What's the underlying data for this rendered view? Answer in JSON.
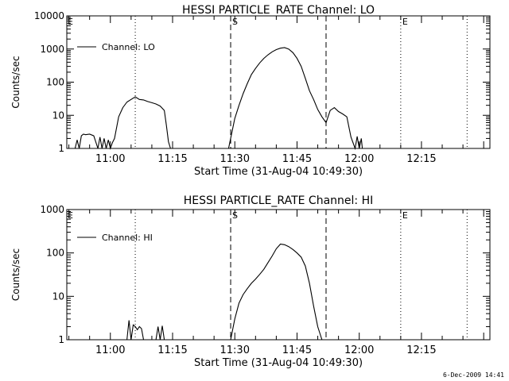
{
  "footer_date": "6-Dec-2009 14:41",
  "chart_data": [
    {
      "type": "line",
      "title": "HESSI PARTICLE_RATE Channel: LO",
      "xlabel": "Start Time (31-Aug-04 10:49:30)",
      "ylabel": "Counts/sec",
      "yscale": "log",
      "ylim": [
        1,
        10000
      ],
      "xlim": [
        "10:49:30",
        "12:31:30"
      ],
      "x_ticks": [
        "11:00",
        "11:15",
        "11:30",
        "11:45",
        "12:00",
        "12:15"
      ],
      "y_ticks": [
        "1",
        "10",
        "100",
        "1000",
        "10000"
      ],
      "legend": {
        "label": "Channel: LO",
        "placement": "top-left"
      },
      "markers": [
        {
          "time": "11:06",
          "style": "dotted",
          "label": ""
        },
        {
          "time": "11:29",
          "style": "dashed",
          "label": "S"
        },
        {
          "time": "11:52",
          "style": "dashed",
          "label": ""
        },
        {
          "time": "12:10",
          "style": "dotted",
          "label": "E"
        },
        {
          "time": "12:26",
          "style": "dotted",
          "label": ""
        }
      ],
      "edge_label": "E",
      "series": [
        {
          "x": [
            "10:51:30",
            "10:52:00",
            "10:52:30",
            "10:53:00",
            "10:53:30",
            "10:54:00",
            "10:55:00",
            "10:56:00",
            "10:57:00",
            "10:57:30",
            "10:58:00",
            "10:58:30",
            "10:59:00",
            "10:59:30",
            "11:00:00",
            "11:00:30",
            "11:01:00",
            "11:02:00",
            "11:03:00",
            "11:04:00",
            "11:05:00",
            "11:06:00",
            "11:07:00",
            "11:08:00",
            "11:09:00",
            "11:10:00",
            "11:11:00",
            "11:12:00",
            "11:13:00",
            "11:13:30",
            "11:14:00",
            "11:14:30"
          ],
          "y": [
            1,
            1.8,
            1,
            2.4,
            2.7,
            2.6,
            2.7,
            2.4,
            1,
            2.2,
            1,
            2.0,
            1,
            1.8,
            1,
            1.5,
            2,
            9,
            17,
            25,
            30,
            36,
            30,
            29,
            26,
            24,
            22,
            19,
            14,
            5,
            1.6,
            1
          ],
          "segment": 1
        },
        {
          "x": [
            "11:28:30",
            "11:29:00",
            "11:29:30",
            "11:30:00",
            "11:31:00",
            "11:32:00",
            "11:33:00",
            "11:34:00",
            "11:35:00",
            "11:36:00",
            "11:37:00",
            "11:38:00",
            "11:39:00",
            "11:40:00",
            "11:41:00",
            "11:42:00",
            "11:43:00",
            "11:44:00",
            "11:45:00",
            "11:46:00",
            "11:47:00",
            "11:48:00",
            "11:49:00",
            "11:50:00",
            "11:51:00",
            "11:52:00",
            "11:53:00",
            "11:54:00",
            "11:55:00",
            "11:56:00",
            "11:57:00",
            "11:58:00",
            "11:59:00",
            "11:59:30",
            "12:00:00",
            "12:00:30",
            "12:00:45"
          ],
          "y": [
            1,
            2,
            4,
            8,
            20,
            45,
            90,
            170,
            260,
            380,
            520,
            670,
            820,
            960,
            1060,
            1100,
            1000,
            780,
            520,
            300,
            130,
            55,
            30,
            15,
            9,
            6,
            14,
            17,
            13,
            11,
            9,
            2.2,
            1,
            2.3,
            1,
            2.0,
            1
          ],
          "segment": 2
        }
      ]
    },
    {
      "type": "line",
      "title": "HESSI PARTICLE_RATE Channel: HI",
      "xlabel": "Start Time (31-Aug-04 10:49:30)",
      "ylabel": "Counts/sec",
      "yscale": "log",
      "ylim": [
        1,
        1000
      ],
      "xlim": [
        "10:49:30",
        "12:31:30"
      ],
      "x_ticks": [
        "11:00",
        "11:15",
        "11:30",
        "11:45",
        "12:00",
        "12:15"
      ],
      "y_ticks": [
        "1",
        "10",
        "100",
        "1000"
      ],
      "legend": {
        "label": "Channel: HI",
        "placement": "top-left"
      },
      "markers": [
        {
          "time": "11:06",
          "style": "dotted",
          "label": ""
        },
        {
          "time": "11:29",
          "style": "dashed",
          "label": "S"
        },
        {
          "time": "11:52",
          "style": "dashed",
          "label": ""
        },
        {
          "time": "12:10",
          "style": "dotted",
          "label": "E"
        },
        {
          "time": "12:26",
          "style": "dotted",
          "label": ""
        }
      ],
      "edge_label": "E",
      "series": [
        {
          "x": [
            "11:04:00",
            "11:04:30",
            "11:05:00",
            "11:05:30",
            "11:06:00",
            "11:06:30",
            "11:07:00",
            "11:07:30",
            "11:08:00"
          ],
          "y": [
            1,
            2.8,
            1,
            2.2,
            2.0,
            1.7,
            2.0,
            1.8,
            1
          ],
          "segment": 1
        },
        {
          "x": [
            "11:11:00",
            "11:11:30",
            "11:12:00",
            "11:12:30",
            "11:13:00"
          ],
          "y": [
            1,
            2.0,
            1,
            2.1,
            1
          ],
          "segment": 2
        },
        {
          "x": [
            "11:29:00",
            "11:30:00",
            "11:31:00",
            "11:32:00",
            "11:33:00",
            "11:34:00",
            "11:35:00",
            "11:36:00",
            "11:37:00",
            "11:38:00",
            "11:39:00",
            "11:40:00",
            "11:41:00",
            "11:42:00",
            "11:43:00",
            "11:44:00",
            "11:45:00",
            "11:46:00",
            "11:47:00",
            "11:48:00",
            "11:49:00",
            "11:50:00",
            "11:51:00",
            "11:52:00"
          ],
          "y": [
            1,
            3,
            7,
            11,
            15,
            20,
            25,
            32,
            42,
            60,
            85,
            125,
            160,
            155,
            140,
            120,
            100,
            80,
            50,
            20,
            6,
            2,
            1,
            1
          ],
          "segment": 3
        }
      ]
    }
  ]
}
